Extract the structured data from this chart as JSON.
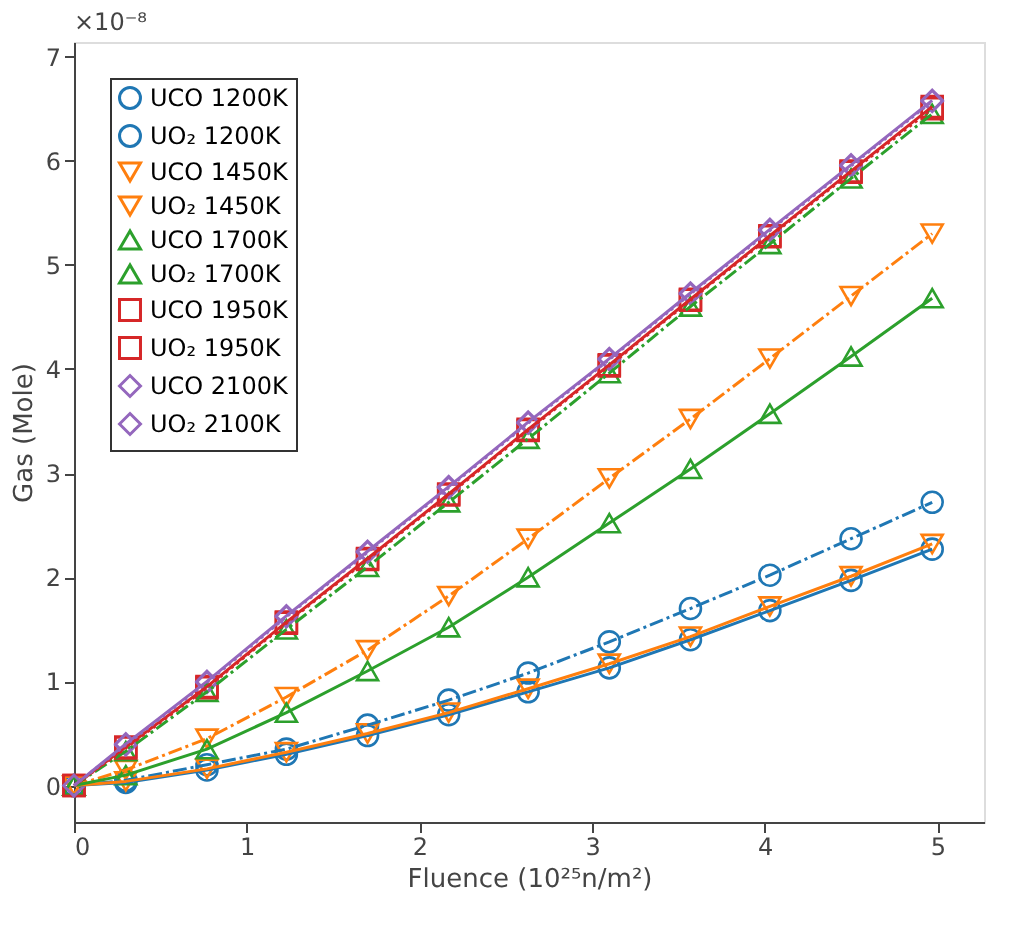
{
  "chart_data": {
    "type": "line",
    "xlabel": "Fluence (10²⁵n/m²)",
    "ylabel": "Gas (Mole)",
    "annotations": [
      "×10⁻⁸"
    ],
    "x": [
      0,
      0.3,
      0.77,
      1.23,
      1.7,
      2.17,
      2.63,
      3.1,
      3.57,
      4.03,
      4.5,
      4.97
    ],
    "xlim": [
      0,
      5.27
    ],
    "xticks": [
      0,
      1,
      2,
      3,
      4,
      5
    ],
    "ylim": [
      -0.35,
      7.14
    ],
    "yticks": [
      0,
      1,
      2,
      3,
      4,
      5,
      6,
      7
    ],
    "grid": false,
    "legend": "top left",
    "series": [
      {
        "name": "UCO 1200K",
        "color": "#1f77b4",
        "marker": "circle",
        "line_style": "solid",
        "values": [
          0,
          0.03,
          0.15,
          0.3,
          0.48,
          0.68,
          0.9,
          1.13,
          1.4,
          1.68,
          1.97,
          2.27
        ]
      },
      {
        "name": "UO₂ 1200K",
        "color": "#1f77b4",
        "marker": "circle",
        "line_style": "dashed",
        "values": [
          0,
          0.05,
          0.2,
          0.35,
          0.58,
          0.82,
          1.08,
          1.38,
          1.7,
          2.02,
          2.37,
          2.72
        ]
      },
      {
        "name": "UCO 1450K",
        "color": "#ff7f0e",
        "marker": "triangle-down",
        "line_style": "solid",
        "values": [
          0,
          0.04,
          0.16,
          0.32,
          0.5,
          0.7,
          0.93,
          1.17,
          1.43,
          1.72,
          2.01,
          2.32
        ]
      },
      {
        "name": "UO₂ 1450K",
        "color": "#ff7f0e",
        "marker": "triangle-down",
        "line_style": "dashed",
        "values": [
          0,
          0.15,
          0.45,
          0.85,
          1.3,
          1.82,
          2.37,
          2.95,
          3.52,
          4.1,
          4.7,
          5.3
        ]
      },
      {
        "name": "UCO 1700K",
        "color": "#2ca02c",
        "marker": "triangle",
        "line_style": "solid",
        "values": [
          0,
          0.1,
          0.35,
          0.7,
          1.1,
          1.52,
          2.0,
          2.52,
          3.04,
          3.57,
          4.12,
          4.68
        ]
      },
      {
        "name": "UO₂ 1700K",
        "color": "#2ca02c",
        "marker": "triangle",
        "line_style": "dashed",
        "values": [
          0,
          0.33,
          0.9,
          1.5,
          2.1,
          2.72,
          3.33,
          3.96,
          4.6,
          5.2,
          5.83,
          6.45
        ]
      },
      {
        "name": "UCO 1950K",
        "color": "#d62728",
        "marker": "square",
        "line_style": "solid",
        "values": [
          0,
          0.37,
          0.95,
          1.57,
          2.18,
          2.8,
          3.42,
          4.04,
          4.67,
          5.28,
          5.9,
          6.52
        ]
      },
      {
        "name": "UO₂ 1950K",
        "color": "#d62728",
        "marker": "square",
        "line_style": "dotted",
        "values": [
          0,
          0.36,
          0.94,
          1.56,
          2.17,
          2.79,
          3.41,
          4.03,
          4.66,
          5.27,
          5.89,
          6.5
        ]
      },
      {
        "name": "UCO 2100K",
        "color": "#9467bd",
        "marker": "diamond",
        "line_style": "solid",
        "values": [
          0,
          0.4,
          1.0,
          1.63,
          2.25,
          2.87,
          3.49,
          4.1,
          4.73,
          5.34,
          5.96,
          6.58
        ]
      },
      {
        "name": "UO₂ 2100K",
        "color": "#9467bd",
        "marker": "diamond",
        "line_style": "dotted",
        "values": [
          0,
          0.39,
          0.99,
          1.62,
          2.24,
          2.86,
          3.48,
          4.09,
          4.72,
          5.33,
          5.95,
          6.57
        ]
      }
    ]
  }
}
